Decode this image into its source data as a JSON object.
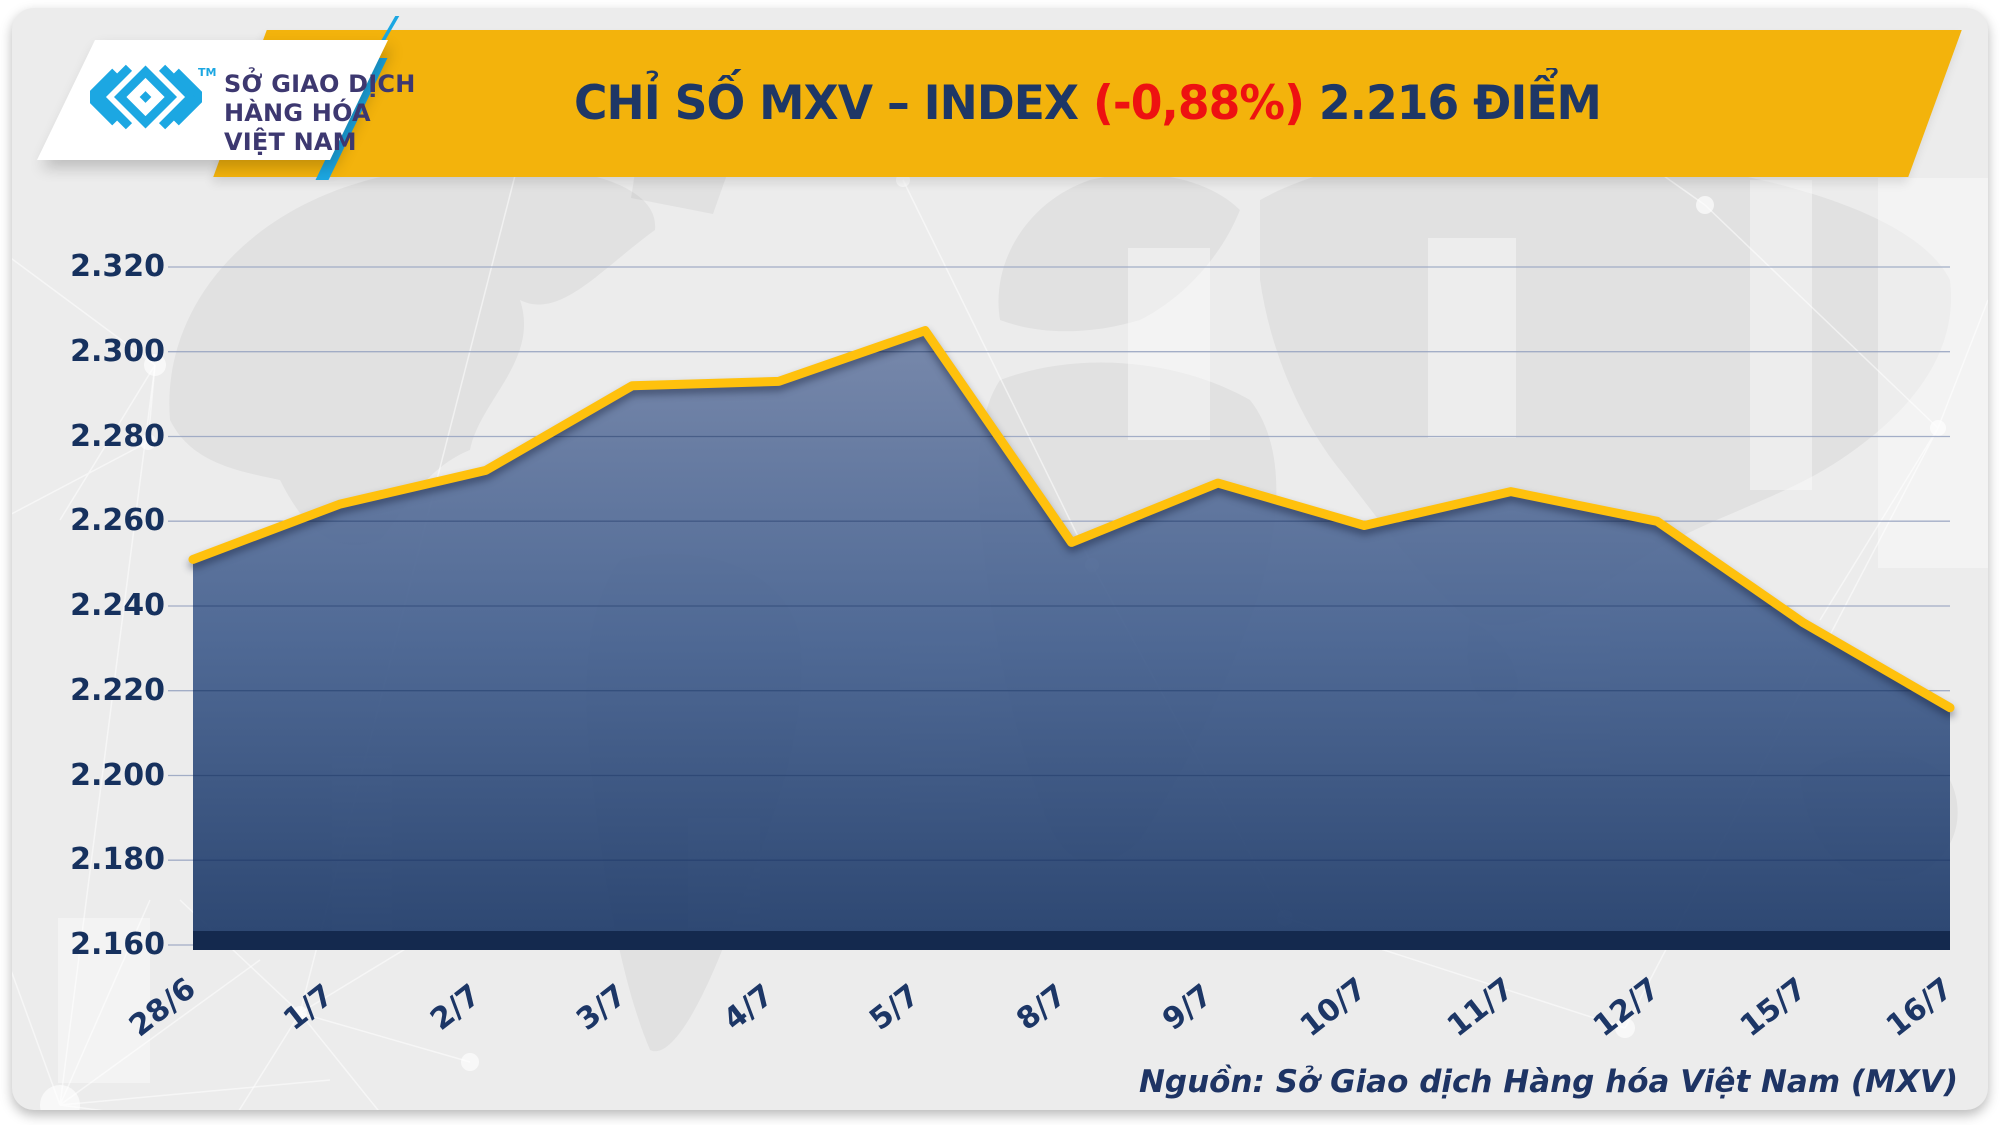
{
  "header": {
    "logo": {
      "tm": "TM",
      "lines": [
        "SỞ GIAO DỊCH",
        "HÀNG HÓA",
        "VIỆT NAM"
      ]
    },
    "title": {
      "part1": "CHỈ SỐ MXV – INDEX ",
      "change": "(-0,88%)",
      "part2": " 2.216 ĐIỂM"
    },
    "colors": {
      "banner_gold": "#F3B30C",
      "title_navy": "#1E3766",
      "title_red": "#EE1111",
      "logo_cyan": "#1CA7E2",
      "logo_text": "#3D3870"
    }
  },
  "chart_data": {
    "type": "area",
    "title": "CHỈ SỐ MXV – INDEX (-0,88%) 2.216 ĐIỂM",
    "categories": [
      "28/6",
      "1/7",
      "2/7",
      "3/7",
      "4/7",
      "5/7",
      "8/7",
      "9/7",
      "10/7",
      "11/7",
      "12/7",
      "15/7",
      "16/7"
    ],
    "values": [
      2.251,
      2.264,
      2.272,
      2.292,
      2.293,
      2.305,
      2.255,
      2.269,
      2.259,
      2.267,
      2.26,
      2.236,
      2.216
    ],
    "ylim": [
      2.16,
      2.32
    ],
    "ytick_step": 0.02,
    "ytick_labels": [
      "2.160",
      "2.180",
      "2.200",
      "2.220",
      "2.240",
      "2.260",
      "2.280",
      "2.300",
      "2.320"
    ],
    "grid": "horizontal",
    "legend": "none",
    "last_value_label": "2.216",
    "change_percent": "-0,88%",
    "line_color": "#FFC10D",
    "fill_gradient": [
      "#6F81A6",
      "#44608F",
      "#1E3A68"
    ],
    "axis_label_color": "#16315E",
    "gridline_color": "#9AA6C2",
    "baseline_bar_color": "#14294E"
  },
  "footer": {
    "source": "Nguồn: Sở Giao dịch Hàng hóa Việt Nam (MXV)"
  }
}
